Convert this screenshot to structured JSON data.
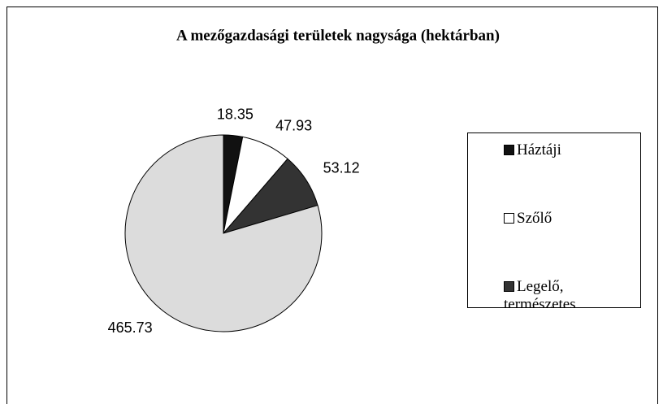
{
  "chart_data": {
    "type": "pie",
    "title": "A mezőgazdasági területek nagysága (hektárban)",
    "categories": [
      "Háztáji",
      "Szőlő",
      "Legelő, természetes",
      null
    ],
    "values": [
      18.35,
      47.93,
      53.12,
      465.73
    ],
    "colors": [
      "#111111",
      "#ffffff",
      "#333333",
      "#dcdcdc"
    ],
    "legend": "right"
  }
}
